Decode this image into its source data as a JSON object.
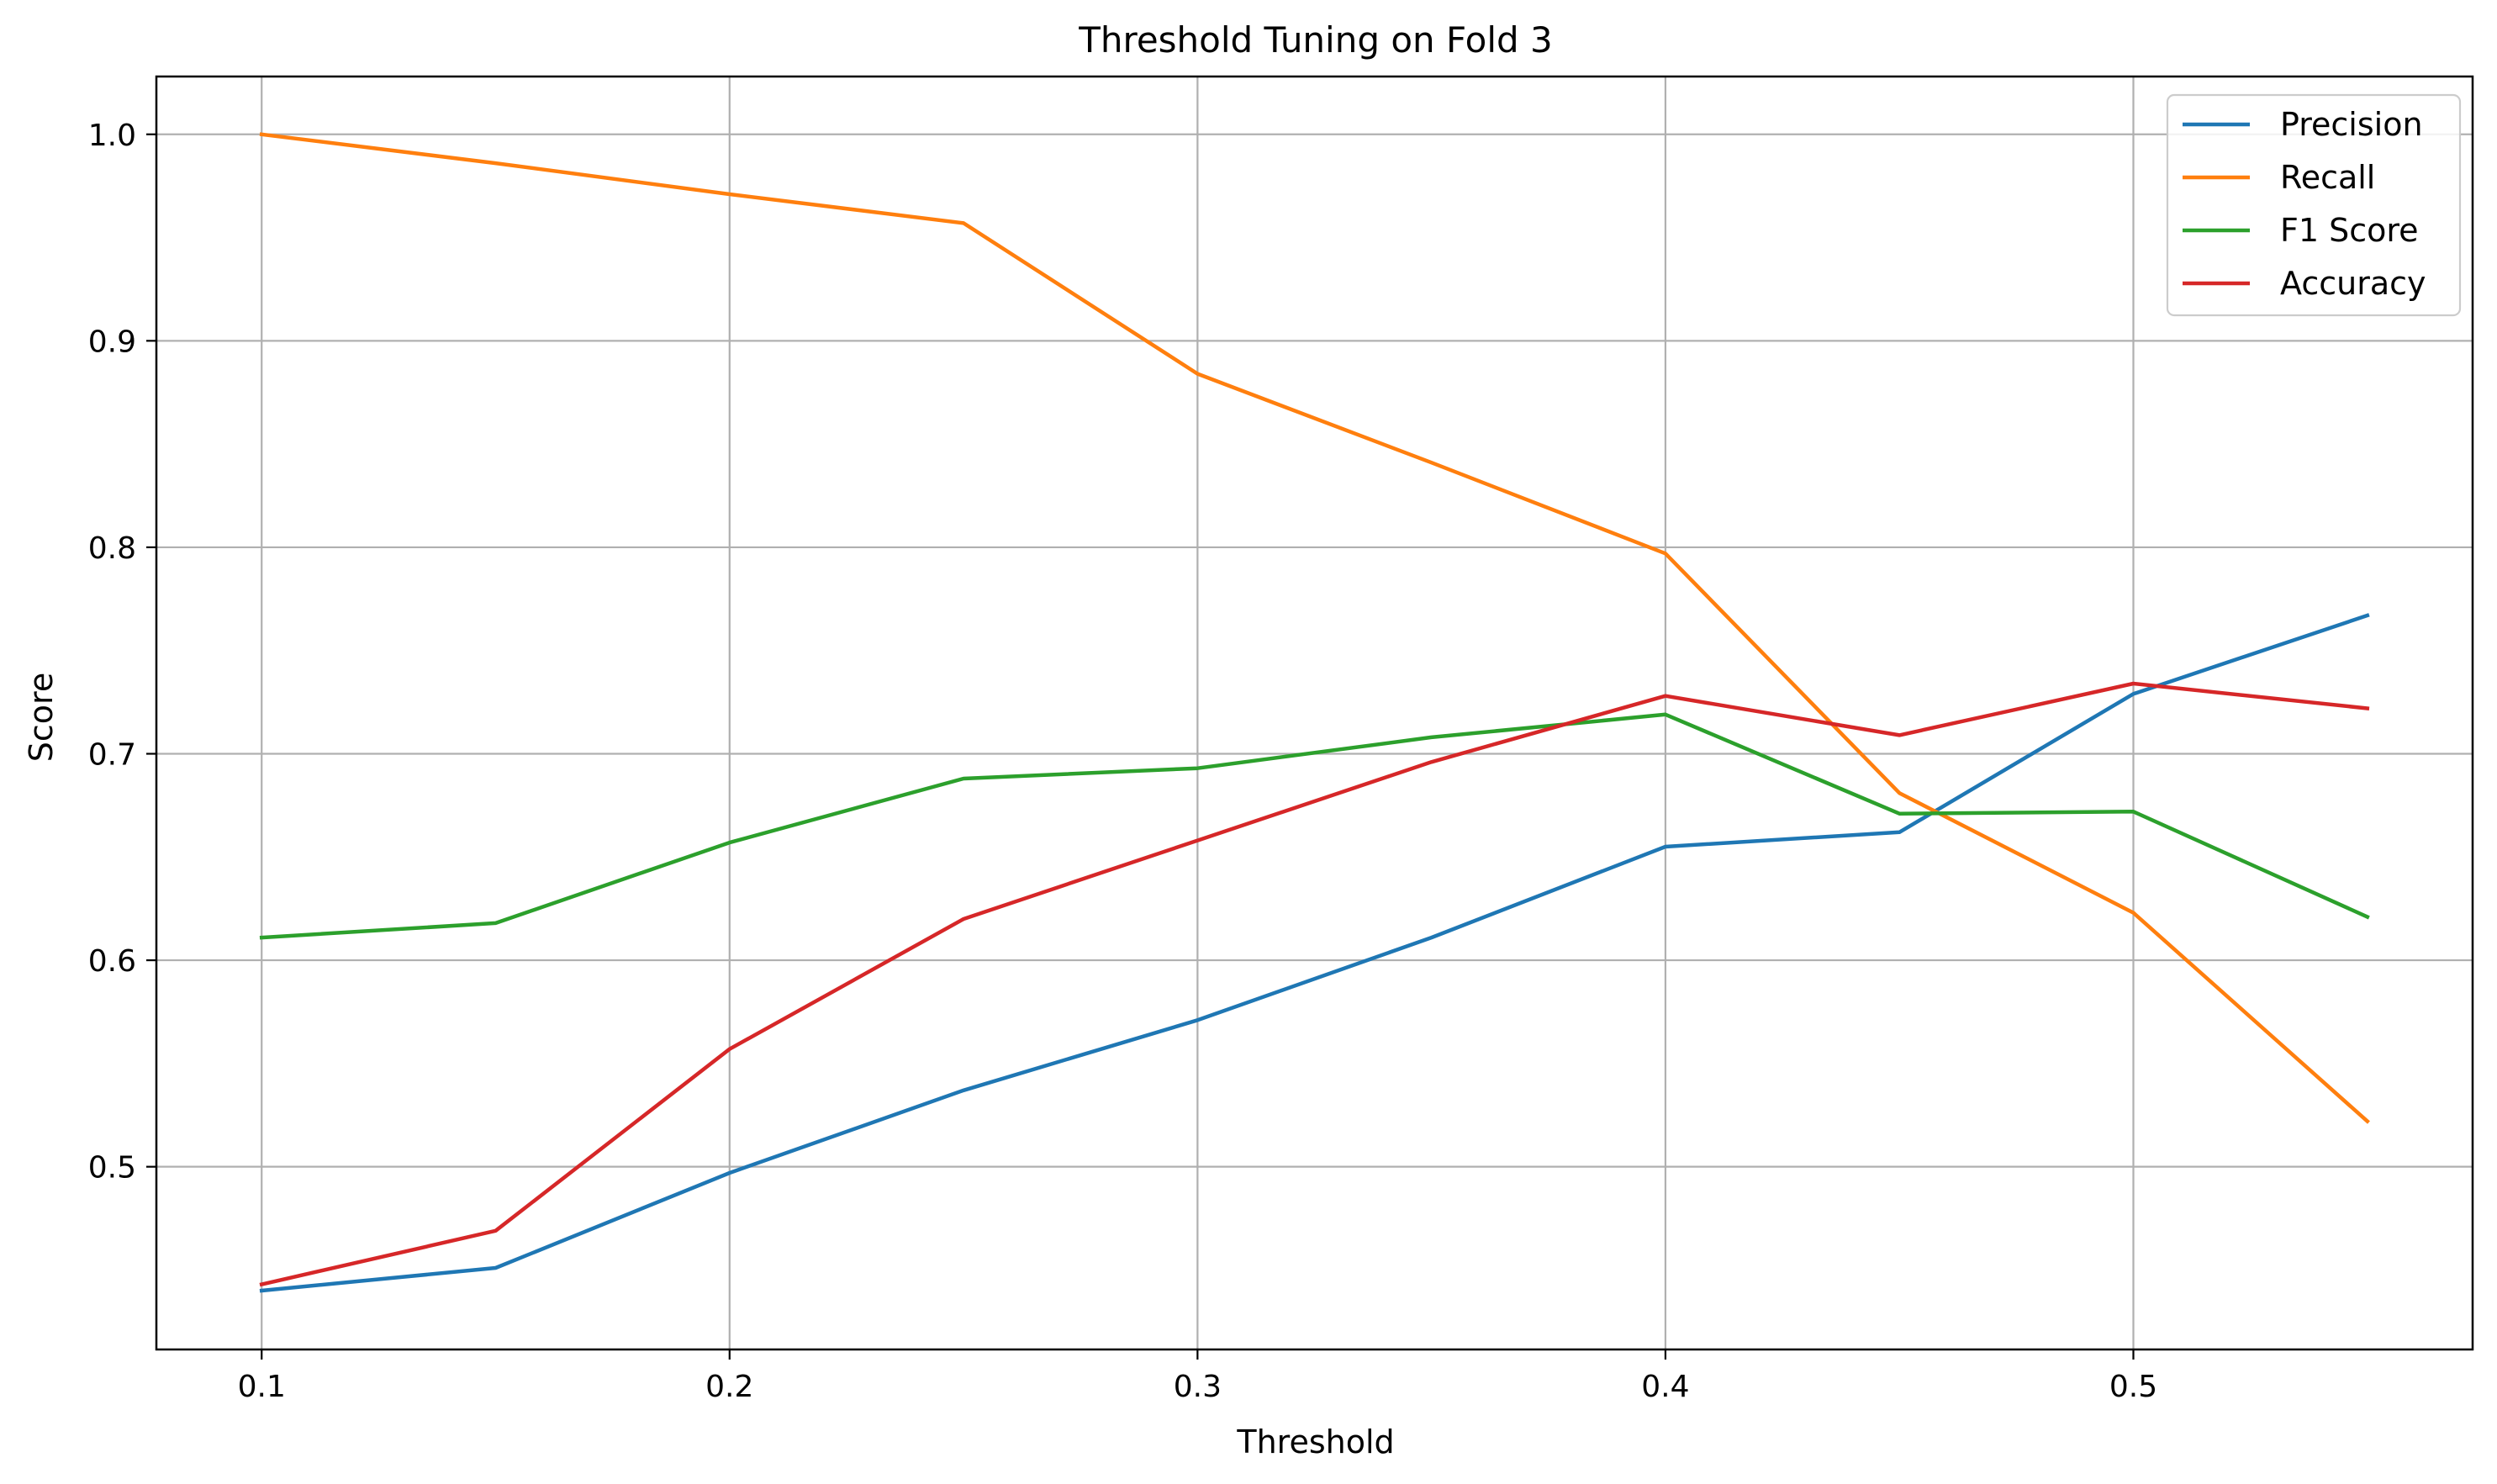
{
  "chart_data": {
    "type": "line",
    "title": "Threshold Tuning on Fold 3",
    "xlabel": "Threshold",
    "ylabel": "Score",
    "x": [
      0.1,
      0.15,
      0.2,
      0.25,
      0.3,
      0.35,
      0.4,
      0.45,
      0.5,
      0.55
    ],
    "xlim": [
      0.0775,
      0.5725
    ],
    "ylim": [
      0.4115,
      1.028
    ],
    "xticks": [
      "0.1",
      "0.2",
      "0.3",
      "0.4",
      "0.5"
    ],
    "yticks": [
      "0.5",
      "0.6",
      "0.7",
      "0.8",
      "0.9",
      "1.0"
    ],
    "grid": true,
    "legend_position": "top-right",
    "series": [
      {
        "name": "Precision",
        "color": "#1f77b4",
        "values": [
          0.44,
          0.451,
          0.497,
          0.537,
          0.571,
          0.611,
          0.655,
          0.662,
          0.729,
          0.767
        ]
      },
      {
        "name": "Recall",
        "color": "#ff7f0e",
        "values": [
          1.0,
          0.986,
          0.971,
          0.957,
          0.884,
          0.841,
          0.797,
          0.681,
          0.623,
          0.522
        ]
      },
      {
        "name": "F1 Score",
        "color": "#2ca02c",
        "values": [
          0.611,
          0.618,
          0.657,
          0.688,
          0.693,
          0.708,
          0.719,
          0.671,
          0.672,
          0.621
        ]
      },
      {
        "name": "Accuracy",
        "color": "#d62728",
        "values": [
          0.443,
          0.469,
          0.557,
          0.62,
          0.658,
          0.696,
          0.728,
          0.709,
          0.734,
          0.722
        ]
      }
    ]
  }
}
